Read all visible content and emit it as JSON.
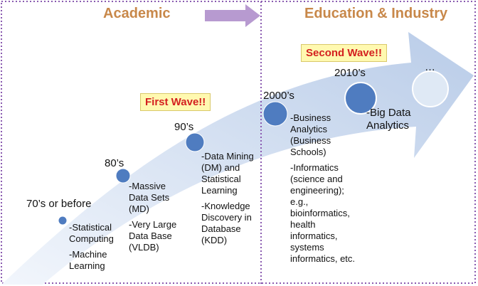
{
  "header": {
    "left": "Academic",
    "right": "Education & Industry"
  },
  "waves": {
    "first": "First Wave!!",
    "second": "Second Wave!!"
  },
  "eras": [
    {
      "label": "70’s or before",
      "items": [
        "-Statistical Computing",
        "-Machine Learning"
      ]
    },
    {
      "label": "80’s",
      "items": [
        "-Massive Data Sets (MD)",
        "-Very Large Data Base (VLDB)"
      ]
    },
    {
      "label": "90’s",
      "items": [
        "-Data Mining (DM) and Statistical Learning",
        "-Knowledge Discovery in Database (KDD)"
      ]
    },
    {
      "label": "2000’s",
      "items": [
        "-Business Analytics (Business Schools)",
        "-Informatics (science and engineering); e.g., bioinformatics, health informatics, systems informatics, etc."
      ]
    },
    {
      "label": "2010’s",
      "items": [
        "-Big Data Analytics"
      ]
    },
    {
      "label": "…",
      "items": []
    }
  ]
}
